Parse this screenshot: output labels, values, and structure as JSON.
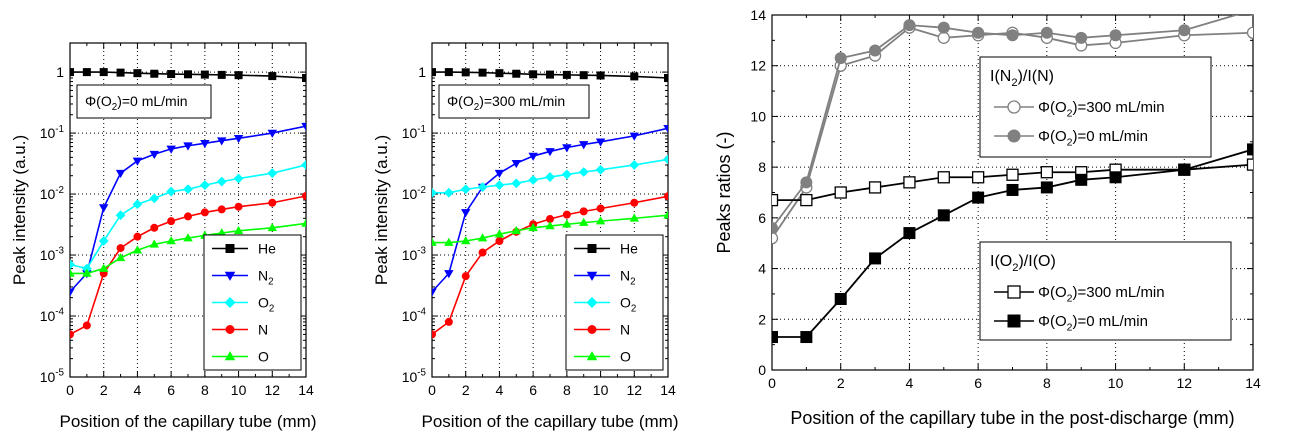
{
  "chart_data": [
    {
      "type": "line",
      "yscale": "log",
      "xlabel": "Position of the capillary tube (mm)",
      "ylabel": "Peak intensity (a.u.)",
      "xlim": [
        0,
        14
      ],
      "ylim": [
        1e-05,
        3
      ],
      "xticks": [
        "0",
        "2",
        "4",
        "6",
        "8",
        "10",
        "12",
        "14"
      ],
      "yticks": [
        "1",
        "10-1",
        "10-2",
        "10-3",
        "10-4",
        "10-5"
      ],
      "annotation": "Φ(O2)=0 mL/min",
      "grid": true,
      "legend_position": "bottom-right",
      "x": [
        0,
        1,
        2,
        3,
        4,
        5,
        6,
        7,
        8,
        9,
        10,
        12,
        14
      ],
      "series": [
        {
          "name": "He",
          "color": "#000000",
          "marker": "square",
          "values": [
            1.0,
            1.0,
            1.0,
            0.98,
            0.96,
            0.94,
            0.93,
            0.92,
            0.91,
            0.9,
            0.89,
            0.86,
            0.8
          ]
        },
        {
          "name": "N2",
          "color": "#0000ff",
          "marker": "triangle-down",
          "values": [
            0.00025,
            0.0005,
            0.006,
            0.022,
            0.035,
            0.045,
            0.055,
            0.062,
            0.068,
            0.075,
            0.082,
            0.1,
            0.13
          ]
        },
        {
          "name": "O2",
          "color": "#00ffff",
          "marker": "diamond",
          "values": [
            0.0007,
            0.0006,
            0.0017,
            0.0045,
            0.0068,
            0.0085,
            0.011,
            0.012,
            0.014,
            0.016,
            0.018,
            0.022,
            0.03
          ]
        },
        {
          "name": "N",
          "color": "#ff0000",
          "marker": "circle",
          "values": [
            5e-05,
            7e-05,
            0.0005,
            0.0013,
            0.002,
            0.0028,
            0.0036,
            0.0043,
            0.005,
            0.0056,
            0.0062,
            0.0072,
            0.0093
          ]
        },
        {
          "name": "O",
          "color": "#00ff00",
          "marker": "triangle-up",
          "values": [
            0.0005,
            0.0005,
            0.0006,
            0.0009,
            0.0012,
            0.0015,
            0.0017,
            0.0019,
            0.0021,
            0.0023,
            0.0025,
            0.0028,
            0.0033
          ]
        }
      ]
    },
    {
      "type": "line",
      "yscale": "log",
      "xlabel": "Position of the capillary tube (mm)",
      "ylabel": "Peak intensity (a.u.)",
      "xlim": [
        0,
        14
      ],
      "ylim": [
        1e-05,
        3
      ],
      "xticks": [
        "0",
        "2",
        "4",
        "6",
        "8",
        "10",
        "12",
        "14"
      ],
      "yticks": [
        "1",
        "10-1",
        "10-2",
        "10-3",
        "10-4",
        "10-5"
      ],
      "annotation": "Φ(O2)=300 mL/min",
      "grid": true,
      "legend_position": "bottom-right",
      "x": [
        0,
        1,
        2,
        3,
        4,
        5,
        6,
        7,
        8,
        9,
        10,
        12,
        14
      ],
      "series": [
        {
          "name": "He",
          "color": "#000000",
          "marker": "square",
          "values": [
            1.0,
            1.0,
            0.99,
            0.98,
            0.96,
            0.94,
            0.92,
            0.91,
            0.9,
            0.89,
            0.88,
            0.85,
            0.8
          ]
        },
        {
          "name": "N2",
          "color": "#0000ff",
          "marker": "triangle-down",
          "values": [
            0.00025,
            0.0005,
            0.005,
            0.013,
            0.022,
            0.032,
            0.042,
            0.05,
            0.058,
            0.065,
            0.072,
            0.09,
            0.12
          ]
        },
        {
          "name": "O2",
          "color": "#00ffff",
          "marker": "diamond",
          "values": [
            0.0105,
            0.0105,
            0.012,
            0.013,
            0.014,
            0.015,
            0.017,
            0.019,
            0.021,
            0.023,
            0.025,
            0.03,
            0.037
          ]
        },
        {
          "name": "N",
          "color": "#ff0000",
          "marker": "circle",
          "values": [
            5e-05,
            8e-05,
            0.00045,
            0.0011,
            0.0017,
            0.0024,
            0.0032,
            0.0039,
            0.0046,
            0.0052,
            0.0058,
            0.0072,
            0.0092
          ]
        },
        {
          "name": "O",
          "color": "#00ff00",
          "marker": "triangle-up",
          "values": [
            0.0016,
            0.0016,
            0.0017,
            0.0019,
            0.0022,
            0.0025,
            0.0028,
            0.003,
            0.0032,
            0.0034,
            0.0036,
            0.004,
            0.0045
          ]
        }
      ]
    },
    {
      "type": "line",
      "yscale": "linear",
      "xlabel": "Position of the capillary tube in the post-discharge (mm)",
      "ylabel": "Peaks ratios (-)",
      "xlim": [
        0,
        14
      ],
      "ylim": [
        0,
        14
      ],
      "xticks": [
        "0",
        "2",
        "4",
        "6",
        "8",
        "10",
        "12",
        "14"
      ],
      "yticks": [
        "0",
        "2",
        "4",
        "6",
        "8",
        "10",
        "12",
        "14"
      ],
      "grid": true,
      "legend_groups": [
        {
          "title": "I(N2)/I(N)",
          "position": "upper-right",
          "entries": [
            "Φ(O2)=300 mL/min",
            "Φ(O2)=0 mL/min"
          ]
        },
        {
          "title": "I(O2)/I(O)",
          "position": "lower-right",
          "entries": [
            "Φ(O2)=300 mL/min",
            "Φ(O2)=0 mL/min"
          ]
        }
      ],
      "series": [
        {
          "name": "Φ(O2)=300 mL/min",
          "group": "I(N2)/I(N)",
          "color": "#808080",
          "marker": "circle-open",
          "x": [
            0,
            1,
            2,
            3,
            4,
            5,
            6,
            7,
            8,
            9,
            10,
            12,
            14
          ],
          "values": [
            5.2,
            7.2,
            12.0,
            12.4,
            13.5,
            13.1,
            13.2,
            13.3,
            13.1,
            12.8,
            12.9,
            13.2,
            13.3
          ]
        },
        {
          "name": "Φ(O2)=0 mL/min",
          "group": "I(N2)/I(N)",
          "color": "#808080",
          "marker": "circle-filled",
          "x": [
            0,
            1,
            2,
            3,
            4,
            5,
            6,
            7,
            8,
            9,
            10,
            12,
            14
          ],
          "values": [
            5.6,
            7.4,
            12.3,
            12.6,
            13.6,
            13.5,
            13.3,
            13.2,
            13.3,
            13.1,
            13.2,
            13.4,
            14.2
          ]
        },
        {
          "name": "Φ(O2)=300 mL/min",
          "group": "I(O2)/I(O)",
          "color": "#000000",
          "marker": "square-open",
          "x": [
            0,
            1,
            2,
            3,
            4,
            5,
            6,
            7,
            8,
            9,
            10,
            12,
            14
          ],
          "values": [
            6.7,
            6.7,
            7.0,
            7.2,
            7.4,
            7.6,
            7.6,
            7.7,
            7.8,
            7.8,
            7.9,
            7.9,
            8.1
          ]
        },
        {
          "name": "Φ(O2)=0 mL/min",
          "group": "I(O2)/I(O)",
          "color": "#000000",
          "marker": "square-filled",
          "x": [
            0,
            1,
            2,
            3,
            4,
            5,
            6,
            7,
            8,
            9,
            10,
            12,
            14
          ],
          "values": [
            1.3,
            1.3,
            2.8,
            4.4,
            5.4,
            6.1,
            6.8,
            7.1,
            7.2,
            7.5,
            7.6,
            7.9,
            8.7
          ]
        }
      ]
    }
  ]
}
